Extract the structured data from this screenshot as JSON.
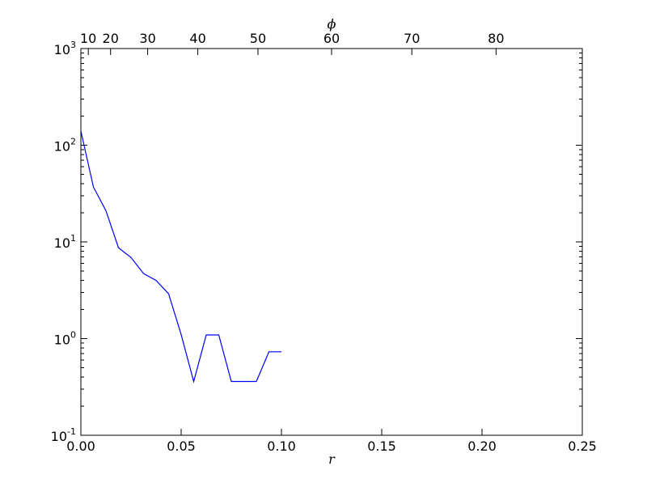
{
  "chart_data": {
    "type": "line",
    "title": "",
    "xlabel": "r",
    "x2label": "ϕ",
    "ylabel": "",
    "y_scale": "log",
    "xlim": [
      0.0,
      0.25
    ],
    "ylim": [
      0.1,
      1000
    ],
    "grid": false,
    "legend": "none",
    "x_ticks": [
      "0.00",
      "0.05",
      "0.10",
      "0.15",
      "0.20",
      "0.25"
    ],
    "y_ticks": [
      {
        "base": "10",
        "exp": "-1",
        "value": 0.1
      },
      {
        "base": "10",
        "exp": "0",
        "value": 1
      },
      {
        "base": "10",
        "exp": "1",
        "value": 10
      },
      {
        "base": "10",
        "exp": "2",
        "value": 100
      },
      {
        "base": "10",
        "exp": "3",
        "value": 1000
      }
    ],
    "top_ticks": [
      {
        "label": "10",
        "r": 0.0037
      },
      {
        "label": "20",
        "r": 0.0148
      },
      {
        "label": "30",
        "r": 0.0333
      },
      {
        "label": "40",
        "r": 0.0583
      },
      {
        "label": "50",
        "r": 0.0883
      },
      {
        "label": "60",
        "r": 0.125
      },
      {
        "label": "70",
        "r": 0.165
      },
      {
        "label": "80",
        "r": 0.207
      }
    ],
    "series": [
      {
        "color": "#0000ff",
        "x": [
          0.0,
          0.00625,
          0.0125,
          0.01875,
          0.025,
          0.03125,
          0.0375,
          0.04375,
          0.05,
          0.05625,
          0.0625,
          0.06875,
          0.075,
          0.08125,
          0.0875,
          0.09375,
          0.1
        ],
        "y": [
          140,
          37,
          21,
          8.7,
          6.9,
          4.7,
          4.0,
          2.9,
          1.1,
          0.36,
          1.09,
          1.09,
          0.36,
          0.36,
          0.36,
          0.73,
          0.73
        ]
      }
    ]
  }
}
